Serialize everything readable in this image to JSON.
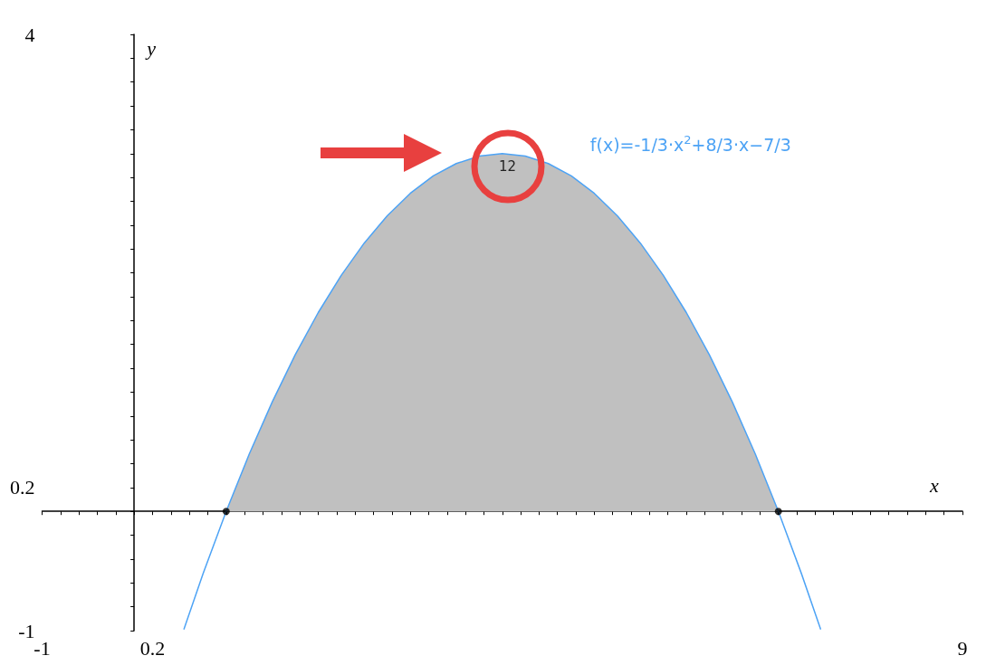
{
  "chart_data": {
    "type": "line",
    "xlabel": "x",
    "ylabel": "y",
    "line_style": "solid",
    "xlim": [
      -1,
      9
    ],
    "ylim": [
      -1,
      4
    ],
    "xticks": [
      -1,
      {
        "value": -0.8,
        "label": null
      },
      {
        "value": -0.6,
        "label": null
      },
      {
        "value": -0.4,
        "label": null
      },
      {
        "value": -0.2,
        "label": null
      },
      {
        "value": 0,
        "label": null
      },
      0.2,
      {
        "value": 0.4,
        "label": null
      },
      {
        "value": 0.6,
        "label": null
      },
      {
        "value": 0.8,
        "label": null
      },
      {
        "value": 1,
        "label": null
      },
      {
        "value": 1.2,
        "label": null
      },
      {
        "value": 1.4,
        "label": null
      },
      {
        "value": 1.6,
        "label": null
      },
      {
        "value": 1.8,
        "label": null
      },
      {
        "value": 2,
        "label": null
      },
      {
        "value": 2.2,
        "label": null
      },
      {
        "value": 2.4,
        "label": null
      },
      {
        "value": 2.6,
        "label": null
      },
      {
        "value": 2.8,
        "label": null
      },
      {
        "value": 3,
        "label": null
      },
      {
        "value": 3.2,
        "label": null
      },
      {
        "value": 3.4,
        "label": null
      },
      {
        "value": 3.6,
        "label": null
      },
      {
        "value": 3.8,
        "label": null
      },
      {
        "value": 4,
        "label": null
      },
      {
        "value": 4.2,
        "label": null
      },
      {
        "value": 4.4,
        "label": null
      },
      {
        "value": 4.6,
        "label": null
      },
      {
        "value": 4.8,
        "label": null
      },
      {
        "value": 5,
        "label": null
      },
      {
        "value": 5.2,
        "label": null
      },
      {
        "value": 5.4,
        "label": null
      },
      {
        "value": 5.6,
        "label": null
      },
      {
        "value": 5.8,
        "label": null
      },
      {
        "value": 6,
        "label": null
      },
      {
        "value": 6.2,
        "label": null
      },
      {
        "value": 6.4,
        "label": null
      },
      {
        "value": 6.6,
        "label": null
      },
      {
        "value": 6.8,
        "label": null
      },
      {
        "value": 7,
        "label": null
      },
      {
        "value": 7.2,
        "label": null
      },
      {
        "value": 7.4,
        "label": null
      },
      {
        "value": 7.6,
        "label": null
      },
      {
        "value": 7.8,
        "label": null
      },
      {
        "value": 8,
        "label": null
      },
      {
        "value": 8.2,
        "label": null
      },
      {
        "value": 8.4,
        "label": null
      },
      {
        "value": 8.6,
        "label": null
      },
      {
        "value": 8.8,
        "label": null
      },
      9
    ],
    "yticks": [
      -1,
      {
        "value": -0.8,
        "label": null
      },
      {
        "value": -0.6,
        "label": null
      },
      {
        "value": -0.4,
        "label": null
      },
      {
        "value": -0.2,
        "label": null
      },
      {
        "value": 0,
        "label": null
      },
      0.2,
      {
        "value": 0.4,
        "label": null
      },
      {
        "value": 0.6,
        "label": null
      },
      {
        "value": 0.8,
        "label": null
      },
      {
        "value": 1,
        "label": null
      },
      {
        "value": 1.2,
        "label": null
      },
      {
        "value": 1.4,
        "label": null
      },
      {
        "value": 1.6,
        "label": null
      },
      {
        "value": 1.8,
        "label": null
      },
      {
        "value": 2,
        "label": null
      },
      {
        "value": 2.2,
        "label": null
      },
      {
        "value": 2.4,
        "label": null
      },
      {
        "value": 2.6,
        "label": null
      },
      {
        "value": 2.8,
        "label": null
      },
      {
        "value": 3,
        "label": null
      },
      {
        "value": 3.2,
        "label": null
      },
      {
        "value": 3.4,
        "label": null
      },
      {
        "value": 3.6,
        "label": null
      },
      {
        "value": 3.8,
        "label": null
      },
      4
    ],
    "series": [
      {
        "type": "area",
        "color": "#c0c0c0",
        "x": [
          1,
          1.25,
          1.5,
          1.75,
          2,
          2.25,
          2.5,
          2.75,
          3,
          3.25,
          3.5,
          3.75,
          4,
          4.25,
          4.5,
          4.75,
          5,
          5.25,
          5.5,
          5.75,
          6,
          6.25,
          6.5,
          6.75,
          7
        ],
        "values": [
          0,
          0.479,
          0.917,
          1.313,
          1.667,
          1.979,
          2.25,
          2.479,
          2.667,
          2.813,
          2.917,
          2.979,
          3,
          2.979,
          2.917,
          2.813,
          2.667,
          2.479,
          2.25,
          1.979,
          1.667,
          1.313,
          0.917,
          0.479,
          0
        ]
      },
      {
        "color": "#4da3f5",
        "x": [
          0.54,
          0.75,
          1,
          1.25,
          1.5,
          1.75,
          2,
          2.25,
          2.5,
          2.75,
          3,
          3.25,
          3.5,
          3.75,
          4,
          4.25,
          4.5,
          4.75,
          5,
          5.25,
          5.5,
          5.75,
          6,
          6.25,
          6.5,
          6.75,
          7,
          7.25,
          7.46
        ],
        "values": [
          -0.99,
          -0.521,
          0,
          0.479,
          0.917,
          1.313,
          1.667,
          1.979,
          2.25,
          2.479,
          2.667,
          2.813,
          2.917,
          2.979,
          3,
          2.979,
          2.917,
          2.813,
          2.667,
          2.479,
          2.25,
          1.979,
          1.667,
          1.313,
          0.917,
          0.479,
          0,
          -0.521,
          -0.99
        ]
      },
      {
        "type": "scatter",
        "color": "#000000",
        "x": [
          1,
          7
        ],
        "values": [
          0,
          0
        ]
      }
    ],
    "annotations": [
      "12",
      "f(x)=-1/3·x$^{2}$+8/3·x−7/3"
    ]
  }
}
